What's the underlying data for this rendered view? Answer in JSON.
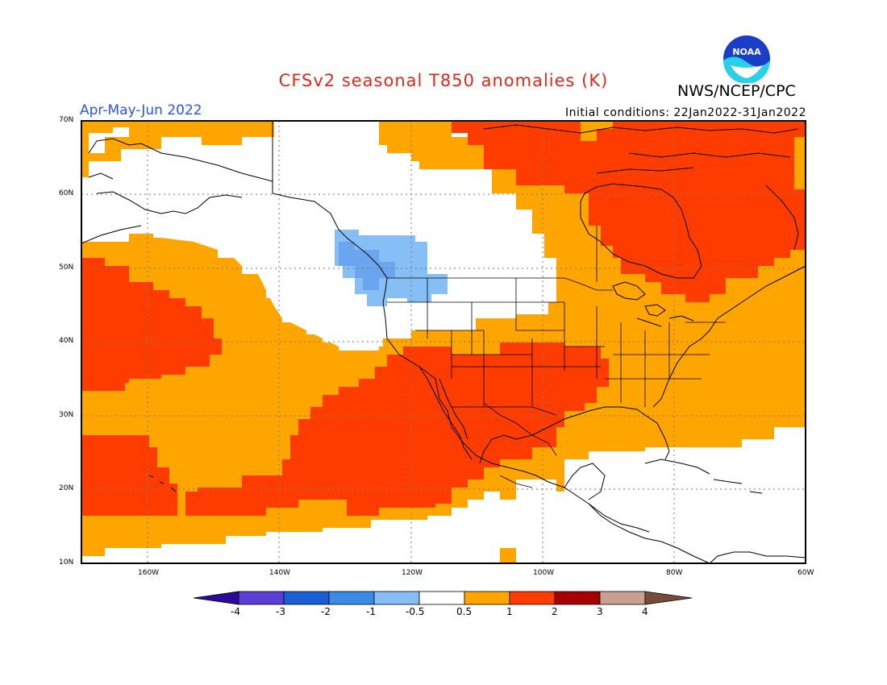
{
  "header": {
    "title": "CFSv2 seasonal T850 anomalies (K)",
    "agency": "NWS/NCEP/CPC",
    "period": "Apr-May-Jun 2022",
    "initial_conditions": "Initial conditions: 22Jan2022-31Jan2022",
    "logo_text": "NOAA"
  },
  "map": {
    "lat_labels": [
      "70N",
      "60N",
      "50N",
      "40N",
      "30N",
      "20N",
      "10N"
    ],
    "lon_labels": [
      "160W",
      "140W",
      "120W",
      "100W",
      "80W",
      "60W"
    ],
    "lat_range": [
      10,
      70
    ],
    "lon_range": [
      -170,
      -60
    ]
  },
  "colorbar": {
    "labels": [
      "-4",
      "-3",
      "-2",
      "-1",
      "-0.5",
      "0.5",
      "1",
      "2",
      "3",
      "4"
    ],
    "colors": [
      "#2a0a9a",
      "#5a3ed6",
      "#1a5fd6",
      "#3a8ae8",
      "#86bff6",
      "#ffffff",
      "#ffa500",
      "#ff3c00",
      "#a80000",
      "#c9a090",
      "#7a4a3a"
    ]
  },
  "legend_colors": {
    "white": "#ffffff",
    "lightblue": "#86bff6",
    "blue": "#6aa6f0",
    "orange": "#ffa500",
    "red": "#ff3c00"
  }
}
